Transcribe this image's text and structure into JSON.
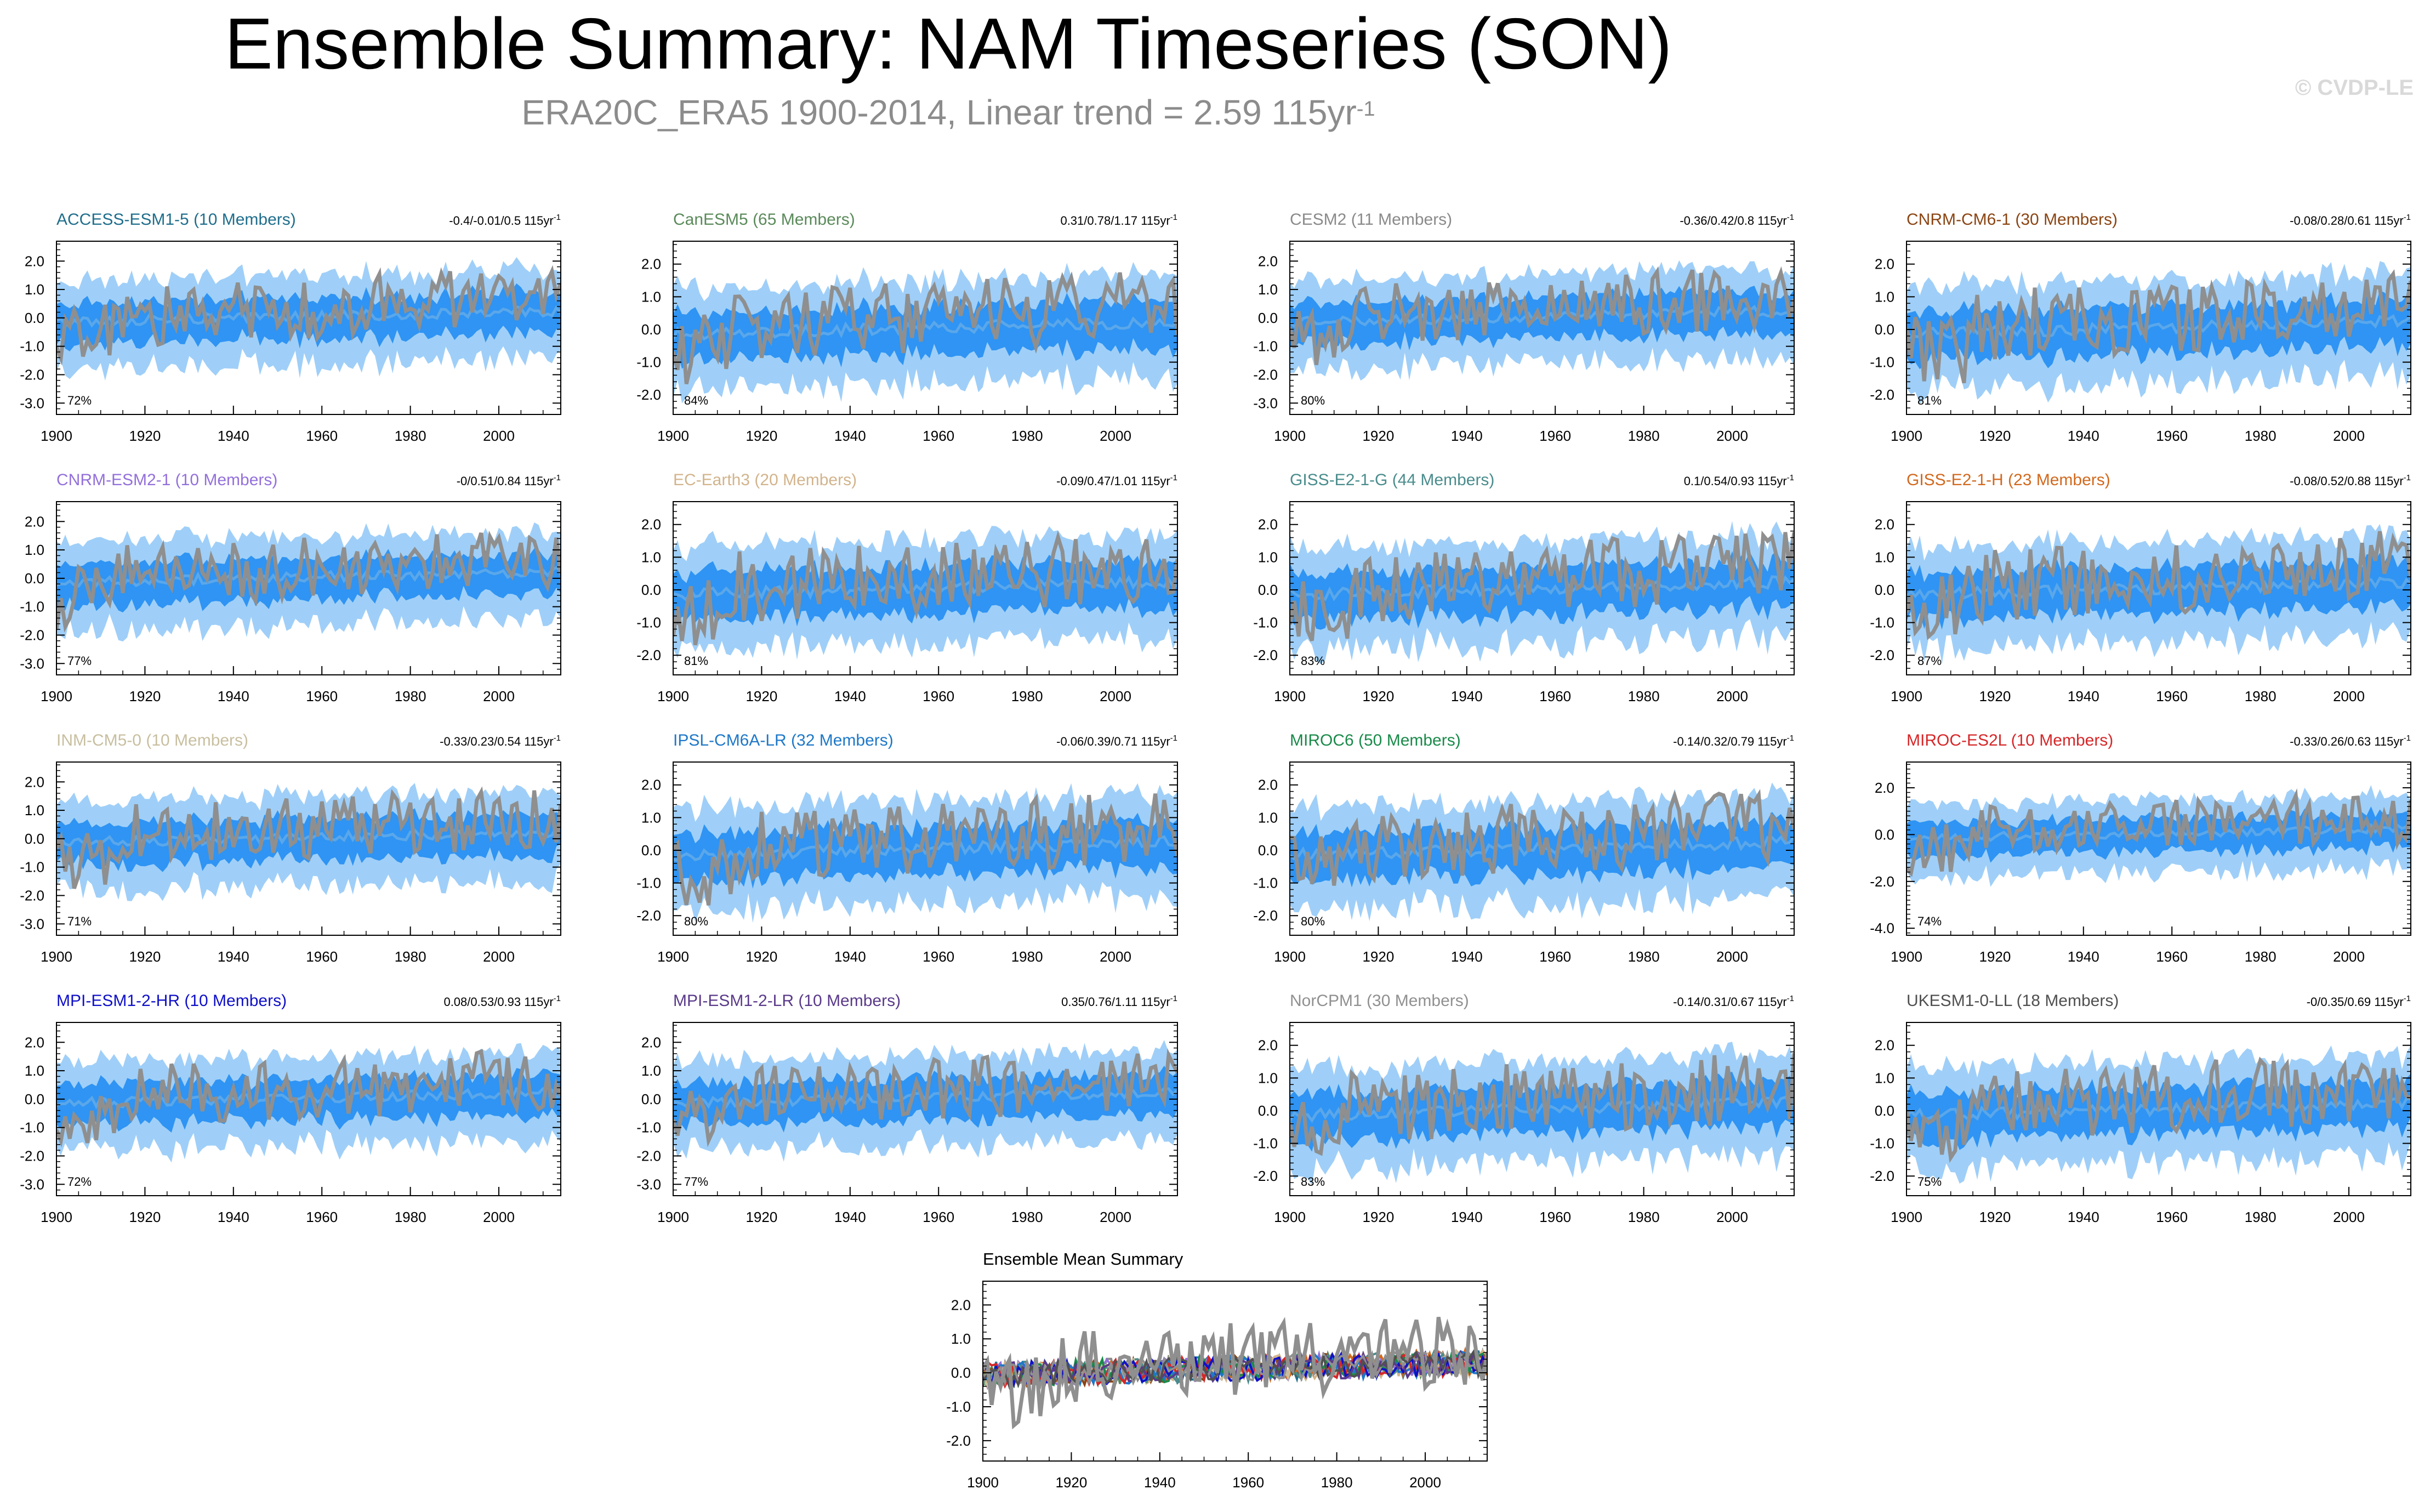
{
  "title": "Ensemble Summary: NAM Timeseries (SON)",
  "subtitle_main": "ERA20C_ERA5 1900-2014, Linear trend = 2.59 115yr",
  "subtitle_sup": "-1",
  "watermark": "© CVDP-LE",
  "colors": {
    "outer_band": "#9fcff8",
    "inner_band": "#2f94f3",
    "ensemble_mean": "#5aa7ea",
    "observations": "#8f8f8f"
  },
  "chart_data": [
    {
      "type": "area",
      "title": "ACCESS-ESM1-5 (10 Members)",
      "title_color": "#1f6e8c",
      "trend": "-0.4/-0.01/0.5 115yr",
      "trend_sup": "-1",
      "pct": "72%",
      "ylim": [
        -3.4,
        2.7
      ],
      "yticks": [
        "2.0",
        "1.0",
        "0.0",
        "-1.0",
        "-2.0",
        "-3.0"
      ],
      "ytick_values": [
        2,
        1,
        0,
        -1,
        -2,
        -3
      ],
      "xlim": [
        1900,
        2014
      ],
      "xticks": [
        "1900",
        "1920",
        "1940",
        "1960",
        "1980",
        "2000"
      ],
      "xtick_values": [
        1900,
        1920,
        1940,
        1960,
        1980,
        2000
      ]
    },
    {
      "type": "area",
      "title": "CanESM5 (65 Members)",
      "title_color": "#5a8a5a",
      "trend": "0.31/0.78/1.17 115yr",
      "trend_sup": "-1",
      "pct": "84%",
      "ylim": [
        -2.6,
        2.7
      ],
      "yticks": [
        "2.0",
        "1.0",
        "0.0",
        "-1.0",
        "-2.0"
      ],
      "ytick_values": [
        2,
        1,
        0,
        -1,
        -2
      ],
      "xlim": [
        1900,
        2014
      ],
      "xticks": [
        "1900",
        "1920",
        "1940",
        "1960",
        "1980",
        "2000"
      ],
      "xtick_values": [
        1900,
        1920,
        1940,
        1960,
        1980,
        2000
      ]
    },
    {
      "type": "area",
      "title": "CESM2 (11 Members)",
      "title_color": "#8a8a8a",
      "trend": "-0.36/0.42/0.8 115yr",
      "trend_sup": "-1",
      "pct": "80%",
      "ylim": [
        -3.4,
        2.7
      ],
      "yticks": [
        "2.0",
        "1.0",
        "0.0",
        "-1.0",
        "-2.0",
        "-3.0"
      ],
      "ytick_values": [
        2,
        1,
        0,
        -1,
        -2,
        -3
      ],
      "xlim": [
        1900,
        2014
      ],
      "xticks": [
        "1900",
        "1920",
        "1940",
        "1960",
        "1980",
        "2000"
      ],
      "xtick_values": [
        1900,
        1920,
        1940,
        1960,
        1980,
        2000
      ]
    },
    {
      "type": "area",
      "title": "CNRM-CM6-1 (30 Members)",
      "title_color": "#8b4513",
      "trend": "-0.08/0.28/0.61 115yr",
      "trend_sup": "-1",
      "pct": "81%",
      "ylim": [
        -2.6,
        2.7
      ],
      "yticks": [
        "2.0",
        "1.0",
        "0.0",
        "-1.0",
        "-2.0"
      ],
      "ytick_values": [
        2,
        1,
        0,
        -1,
        -2
      ],
      "xlim": [
        1900,
        2014
      ],
      "xticks": [
        "1900",
        "1920",
        "1940",
        "1960",
        "1980",
        "2000"
      ],
      "xtick_values": [
        1900,
        1920,
        1940,
        1960,
        1980,
        2000
      ]
    },
    {
      "type": "area",
      "title": "CNRM-ESM2-1 (10 Members)",
      "title_color": "#9370db",
      "trend": "-0/0.51/0.84 115yr",
      "trend_sup": "-1",
      "pct": "77%",
      "ylim": [
        -3.4,
        2.7
      ],
      "yticks": [
        "2.0",
        "1.0",
        "0.0",
        "-1.0",
        "-2.0",
        "-3.0"
      ],
      "ytick_values": [
        2,
        1,
        0,
        -1,
        -2,
        -3
      ],
      "xlim": [
        1900,
        2014
      ],
      "xticks": [
        "1900",
        "1920",
        "1940",
        "1960",
        "1980",
        "2000"
      ],
      "xtick_values": [
        1900,
        1920,
        1940,
        1960,
        1980,
        2000
      ]
    },
    {
      "type": "area",
      "title": "EC-Earth3 (20 Members)",
      "title_color": "#d2b48c",
      "trend": "-0.09/0.47/1.01 115yr",
      "trend_sup": "-1",
      "pct": "81%",
      "ylim": [
        -2.6,
        2.7
      ],
      "yticks": [
        "2.0",
        "1.0",
        "0.0",
        "-1.0",
        "-2.0"
      ],
      "ytick_values": [
        2,
        1,
        0,
        -1,
        -2
      ],
      "xlim": [
        1900,
        2014
      ],
      "xticks": [
        "1900",
        "1920",
        "1940",
        "1960",
        "1980",
        "2000"
      ],
      "xtick_values": [
        1900,
        1920,
        1940,
        1960,
        1980,
        2000
      ]
    },
    {
      "type": "area",
      "title": "GISS-E2-1-G (44 Members)",
      "title_color": "#4a8c8c",
      "trend": "0.1/0.54/0.93 115yr",
      "trend_sup": "-1",
      "pct": "83%",
      "ylim": [
        -2.6,
        2.7
      ],
      "yticks": [
        "2.0",
        "1.0",
        "0.0",
        "-1.0",
        "-2.0"
      ],
      "ytick_values": [
        2,
        1,
        0,
        -1,
        -2
      ],
      "xlim": [
        1900,
        2014
      ],
      "xticks": [
        "1900",
        "1920",
        "1940",
        "1960",
        "1980",
        "2000"
      ],
      "xtick_values": [
        1900,
        1920,
        1940,
        1960,
        1980,
        2000
      ]
    },
    {
      "type": "area",
      "title": "GISS-E2-1-H (23 Members)",
      "title_color": "#d2691e",
      "trend": "-0.08/0.52/0.88 115yr",
      "trend_sup": "-1",
      "pct": "87%",
      "ylim": [
        -2.6,
        2.7
      ],
      "yticks": [
        "2.0",
        "1.0",
        "0.0",
        "-1.0",
        "-2.0"
      ],
      "ytick_values": [
        2,
        1,
        0,
        -1,
        -2
      ],
      "xlim": [
        1900,
        2014
      ],
      "xticks": [
        "1900",
        "1920",
        "1940",
        "1960",
        "1980",
        "2000"
      ],
      "xtick_values": [
        1900,
        1920,
        1940,
        1960,
        1980,
        2000
      ]
    },
    {
      "type": "area",
      "title": "INM-CM5-0 (10 Members)",
      "title_color": "#c8bfa0",
      "trend": "-0.33/0.23/0.54 115yr",
      "trend_sup": "-1",
      "pct": "71%",
      "ylim": [
        -3.4,
        2.7
      ],
      "yticks": [
        "2.0",
        "1.0",
        "0.0",
        "-1.0",
        "-2.0",
        "-3.0"
      ],
      "ytick_values": [
        2,
        1,
        0,
        -1,
        -2,
        -3
      ],
      "xlim": [
        1900,
        2014
      ],
      "xticks": [
        "1900",
        "1920",
        "1940",
        "1960",
        "1980",
        "2000"
      ],
      "xtick_values": [
        1900,
        1920,
        1940,
        1960,
        1980,
        2000
      ]
    },
    {
      "type": "area",
      "title": "IPSL-CM6A-LR (32 Members)",
      "title_color": "#1e78c8",
      "trend": "-0.06/0.39/0.71 115yr",
      "trend_sup": "-1",
      "pct": "80%",
      "ylim": [
        -2.6,
        2.7
      ],
      "yticks": [
        "2.0",
        "1.0",
        "0.0",
        "-1.0",
        "-2.0"
      ],
      "ytick_values": [
        2,
        1,
        0,
        -1,
        -2
      ],
      "xlim": [
        1900,
        2014
      ],
      "xticks": [
        "1900",
        "1920",
        "1940",
        "1960",
        "1980",
        "2000"
      ],
      "xtick_values": [
        1900,
        1920,
        1940,
        1960,
        1980,
        2000
      ]
    },
    {
      "type": "area",
      "title": "MIROC6 (50 Members)",
      "title_color": "#1a8a4a",
      "trend": "-0.14/0.32/0.79 115yr",
      "trend_sup": "-1",
      "pct": "80%",
      "ylim": [
        -2.6,
        2.7
      ],
      "yticks": [
        "2.0",
        "1.0",
        "0.0",
        "-1.0",
        "-2.0"
      ],
      "ytick_values": [
        2,
        1,
        0,
        -1,
        -2
      ],
      "xlim": [
        1900,
        2014
      ],
      "xticks": [
        "1900",
        "1920",
        "1940",
        "1960",
        "1980",
        "2000"
      ],
      "xtick_values": [
        1900,
        1920,
        1940,
        1960,
        1980,
        2000
      ]
    },
    {
      "type": "area",
      "title": "MIROC-ES2L (10 Members)",
      "title_color": "#d62728",
      "trend": "-0.33/0.26/0.63 115yr",
      "trend_sup": "-1",
      "pct": "74%",
      "ylim": [
        -4.3,
        3.1
      ],
      "yticks": [
        "2.0",
        "0.0",
        "-2.0",
        "-4.0"
      ],
      "ytick_values": [
        2,
        0,
        -2,
        -4
      ],
      "xlim": [
        1900,
        2014
      ],
      "xticks": [
        "1900",
        "1920",
        "1940",
        "1960",
        "1980",
        "2000"
      ],
      "xtick_values": [
        1900,
        1920,
        1940,
        1960,
        1980,
        2000
      ]
    },
    {
      "type": "area",
      "title": "MPI-ESM1-2-HR (10 Members)",
      "title_color": "#1010c8",
      "trend": "0.08/0.53/0.93 115yr",
      "trend_sup": "-1",
      "pct": "72%",
      "ylim": [
        -3.4,
        2.7
      ],
      "yticks": [
        "2.0",
        "1.0",
        "0.0",
        "-1.0",
        "-2.0",
        "-3.0"
      ],
      "ytick_values": [
        2,
        1,
        0,
        -1,
        -2,
        -3
      ],
      "xlim": [
        1900,
        2014
      ],
      "xticks": [
        "1900",
        "1920",
        "1940",
        "1960",
        "1980",
        "2000"
      ],
      "xtick_values": [
        1900,
        1920,
        1940,
        1960,
        1980,
        2000
      ]
    },
    {
      "type": "area",
      "title": "MPI-ESM1-2-LR (10 Members)",
      "title_color": "#5a3a8a",
      "trend": "0.35/0.76/1.11 115yr",
      "trend_sup": "-1",
      "pct": "77%",
      "ylim": [
        -3.4,
        2.7
      ],
      "yticks": [
        "2.0",
        "1.0",
        "0.0",
        "-1.0",
        "-2.0",
        "-3.0"
      ],
      "ytick_values": [
        2,
        1,
        0,
        -1,
        -2,
        -3
      ],
      "xlim": [
        1900,
        2014
      ],
      "xticks": [
        "1900",
        "1920",
        "1940",
        "1960",
        "1980",
        "2000"
      ],
      "xtick_values": [
        1900,
        1920,
        1940,
        1960,
        1980,
        2000
      ]
    },
    {
      "type": "area",
      "title": "NorCPM1 (30 Members)",
      "title_color": "#909090",
      "trend": "-0.14/0.31/0.67 115yr",
      "trend_sup": "-1",
      "pct": "83%",
      "ylim": [
        -2.6,
        2.7
      ],
      "yticks": [
        "2.0",
        "1.0",
        "0.0",
        "-1.0",
        "-2.0"
      ],
      "ytick_values": [
        2,
        1,
        0,
        -1,
        -2
      ],
      "xlim": [
        1900,
        2014
      ],
      "xticks": [
        "1900",
        "1920",
        "1940",
        "1960",
        "1980",
        "2000"
      ],
      "xtick_values": [
        1900,
        1920,
        1940,
        1960,
        1980,
        2000
      ]
    },
    {
      "type": "area",
      "title": "UKESM1-0-LL (18 Members)",
      "title_color": "#505050",
      "trend": "-0/0.35/0.69 115yr",
      "trend_sup": "-1",
      "pct": "75%",
      "ylim": [
        -2.6,
        2.7
      ],
      "yticks": [
        "2.0",
        "1.0",
        "0.0",
        "-1.0",
        "-2.0"
      ],
      "ytick_values": [
        2,
        1,
        0,
        -1,
        -2
      ],
      "xlim": [
        1900,
        2014
      ],
      "xticks": [
        "1900",
        "1920",
        "1940",
        "1960",
        "1980",
        "2000"
      ],
      "xtick_values": [
        1900,
        1920,
        1940,
        1960,
        1980,
        2000
      ]
    },
    {
      "type": "line",
      "title": "Ensemble Mean Summary",
      "title_color": "#000000",
      "trend": "",
      "trend_sup": "",
      "pct": "",
      "ylim": [
        -2.6,
        2.7
      ],
      "yticks": [
        "2.0",
        "1.0",
        "0.0",
        "-1.0",
        "-2.0"
      ],
      "ytick_values": [
        2,
        1,
        0,
        -1,
        -2
      ],
      "xlim": [
        1900,
        2014
      ],
      "xticks": [
        "1900",
        "1920",
        "1940",
        "1960",
        "1980",
        "2000"
      ],
      "xtick_values": [
        1900,
        1920,
        1940,
        1960,
        1980,
        2000
      ],
      "series_colors": [
        "#1f6e8c",
        "#5a8a5a",
        "#8a8a8a",
        "#8b4513",
        "#9370db",
        "#d2b48c",
        "#4a8c8c",
        "#d2691e",
        "#c8bfa0",
        "#1e78c8",
        "#1a8a4a",
        "#d62728",
        "#1010c8",
        "#5a3a8a",
        "#909090",
        "#505050"
      ]
    }
  ]
}
